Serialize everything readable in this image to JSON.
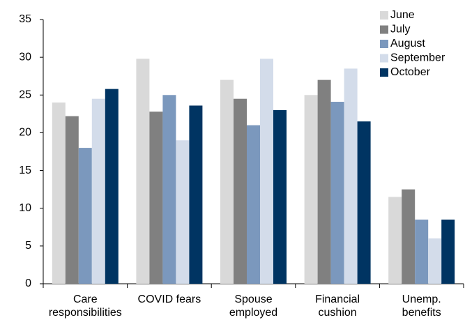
{
  "chart_data": {
    "type": "bar",
    "categories": [
      "Care\nresponsibilities",
      "COVID fears",
      "Spouse\nemployed",
      "Financial\ncushion",
      "Unemp.\nbenefits"
    ],
    "series": [
      {
        "name": "June",
        "color": "#d9d9d9",
        "values": [
          24,
          29.8,
          27,
          25,
          11.5
        ]
      },
      {
        "name": "July",
        "color": "#808080",
        "values": [
          22.2,
          22.8,
          24.5,
          27,
          12.5
        ]
      },
      {
        "name": "August",
        "color": "#7b98bd",
        "values": [
          18,
          25,
          21,
          24.1,
          8.5
        ]
      },
      {
        "name": "September",
        "color": "#d3dcea",
        "values": [
          24.5,
          19,
          29.8,
          28.5,
          6
        ]
      },
      {
        "name": "October",
        "color": "#003462",
        "values": [
          25.8,
          23.6,
          23,
          21.5,
          8.5
        ]
      }
    ],
    "ylim": [
      0,
      35
    ],
    "yticks": [
      0,
      5,
      10,
      15,
      20,
      25,
      30,
      35
    ],
    "grid": false,
    "legend": "top-right"
  }
}
